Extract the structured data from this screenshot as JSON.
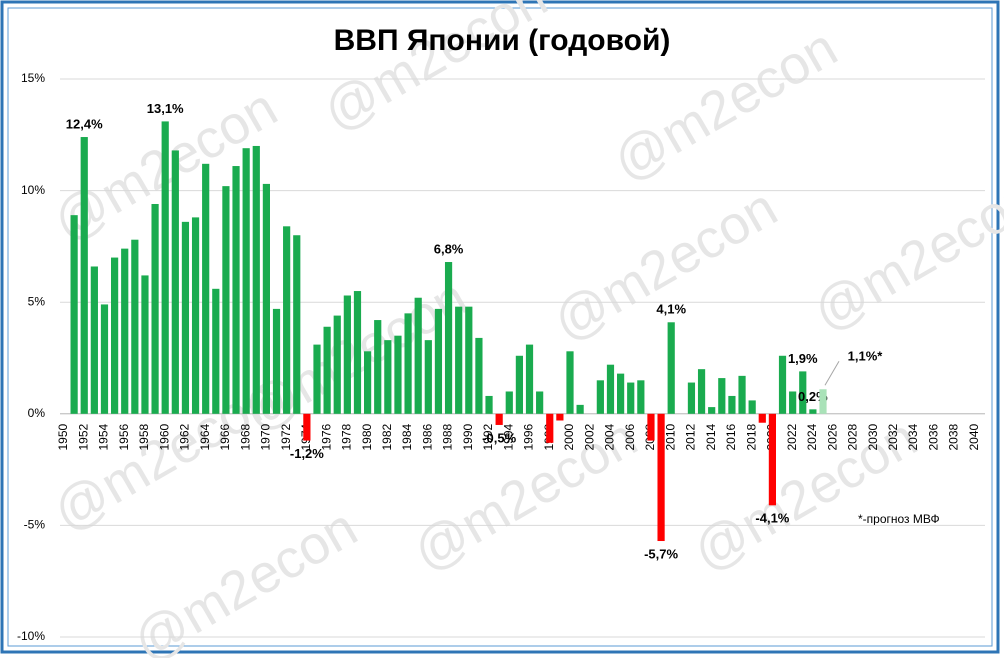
{
  "chart_data": {
    "type": "bar",
    "title": "ВВП Японии (годовой)",
    "watermark": "@m2econ",
    "note": "*-прогноз МВФ",
    "categories": [
      "1950",
      null,
      "1952",
      null,
      "1954",
      null,
      "1956",
      null,
      "1958",
      null,
      "1960",
      null,
      "1962",
      null,
      "1964",
      null,
      "1966",
      null,
      "1968",
      null,
      "1970",
      null,
      "1972",
      null,
      "1974",
      null,
      "1976",
      null,
      "1978",
      null,
      "1980",
      null,
      "1982",
      null,
      "1984",
      null,
      "1986",
      null,
      "1988",
      null,
      "1990",
      null,
      "1992",
      null,
      "1994",
      null,
      "1996",
      null,
      "1998",
      null,
      "2000",
      null,
      "2002",
      null,
      "2004",
      null,
      "2006",
      null,
      "2008",
      null,
      "2010",
      null,
      "2012",
      null,
      "2014",
      null,
      "2016",
      null,
      "2018",
      null,
      "2020",
      null,
      "2022",
      null,
      "2024",
      null,
      "2026",
      null,
      "2028",
      null,
      "2030",
      null,
      "2032",
      null,
      "2034",
      null,
      "2036",
      null,
      "2038",
      null,
      "2040"
    ],
    "values": [
      null,
      8.9,
      12.4,
      6.6,
      4.9,
      7.0,
      7.4,
      7.8,
      6.2,
      9.4,
      13.1,
      11.8,
      8.6,
      8.8,
      11.2,
      5.6,
      10.2,
      11.1,
      11.9,
      12.0,
      10.3,
      4.7,
      8.4,
      8.0,
      -1.2,
      3.1,
      3.9,
      4.4,
      5.3,
      5.5,
      2.8,
      4.2,
      3.3,
      3.5,
      4.5,
      5.2,
      3.3,
      4.7,
      6.8,
      4.8,
      4.8,
      3.4,
      0.8,
      -0.5,
      1.0,
      2.6,
      3.1,
      1.0,
      -1.3,
      -0.3,
      2.8,
      0.4,
      0.0,
      1.5,
      2.2,
      1.8,
      1.4,
      1.5,
      -1.2,
      -5.7,
      4.1,
      0.0,
      1.4,
      2.0,
      0.3,
      1.6,
      0.8,
      1.7,
      0.6,
      -0.4,
      -4.1,
      2.6,
      1.0,
      1.9,
      0.2,
      1.1,
      null,
      null,
      null,
      null,
      null,
      null,
      null,
      null,
      null,
      null,
      null,
      null,
      null,
      null,
      null
    ],
    "value_labels": [
      null,
      null,
      "12,4%",
      null,
      null,
      null,
      null,
      null,
      null,
      null,
      "13,1%",
      null,
      null,
      null,
      null,
      null,
      null,
      null,
      null,
      null,
      null,
      null,
      null,
      null,
      "-1,2%",
      null,
      null,
      null,
      null,
      null,
      null,
      null,
      null,
      null,
      null,
      null,
      null,
      null,
      "6,8%",
      null,
      null,
      null,
      null,
      "-0,5%",
      null,
      null,
      null,
      null,
      null,
      null,
      null,
      null,
      null,
      null,
      null,
      null,
      null,
      null,
      null,
      "-5,7%",
      "4,1%",
      null,
      null,
      null,
      null,
      null,
      null,
      null,
      null,
      null,
      "-4,1%",
      null,
      null,
      "1,9%",
      "0,2%",
      "1,1%*",
      null,
      null,
      null,
      null,
      null,
      null,
      null,
      null,
      null,
      null,
      null,
      null,
      null,
      null,
      null
    ],
    "color": "#1aab4f",
    "negative_color": "#ff0000",
    "forecast_color": "#a9e2b8",
    "forecast": [
      2025
    ],
    "ylim": [
      -10,
      15
    ],
    "yticks": [
      {
        "value": -10,
        "label": "-10%"
      },
      {
        "value": -5,
        "label": "-5%"
      },
      {
        "value": 0,
        "label": "0%"
      },
      {
        "value": 5,
        "label": "5%"
      },
      {
        "value": 10,
        "label": "10%"
      },
      {
        "value": 15,
        "label": "15%"
      }
    ],
    "grid": true
  }
}
